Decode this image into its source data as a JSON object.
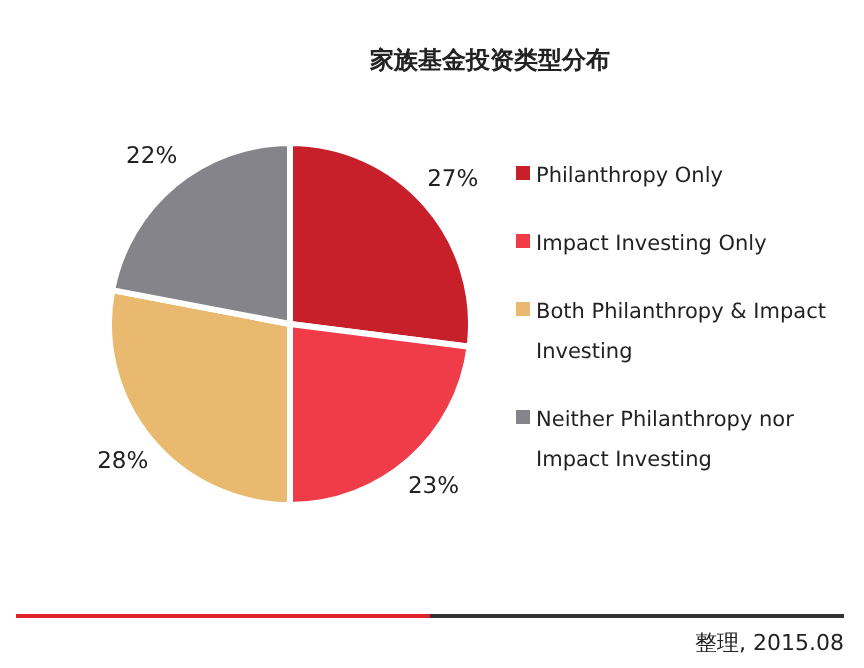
{
  "chart_data": {
    "type": "pie",
    "title": "家族基金投资类型分布",
    "categories": [
      "Philanthropy Only",
      "Impact Investing Only",
      "Both Philanthropy & Impact Investing",
      "Neither Philanthropy nor Impact Investing"
    ],
    "values": [
      27,
      23,
      28,
      22
    ],
    "colors": [
      "#c8202a",
      "#ef3c48",
      "#e8b96e",
      "#85848a"
    ],
    "value_labels": [
      "27%",
      "23%",
      "28%",
      "22%"
    ],
    "legend": "right",
    "annotations": [
      "整理, 2015.08"
    ]
  }
}
